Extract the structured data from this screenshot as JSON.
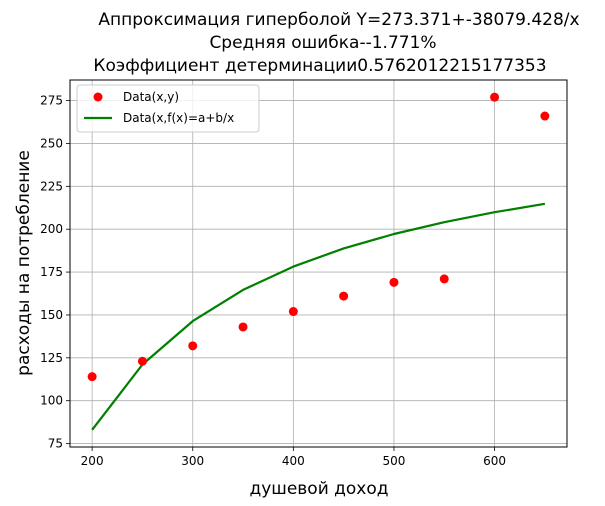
{
  "chart_data": {
    "type": "line",
    "title_lines": [
      "Аппроксимация гиперболой Y=273.371+-38079.428/x",
      "Средняя ошибка--1.771%",
      "Коэффициент детерминации0.5762012215177353"
    ],
    "xlabel": "душевой доход",
    "ylabel": "расходы на потребление",
    "xlim": [
      178,
      672
    ],
    "ylim": [
      73,
      287
    ],
    "xticks": [
      200,
      300,
      400,
      500,
      600
    ],
    "yticks": [
      75,
      100,
      125,
      150,
      175,
      200,
      225,
      250,
      275
    ],
    "grid": true,
    "legend_position": "upper-left",
    "series": [
      {
        "name": "Data(x,y)",
        "kind": "scatter",
        "color": "#ff0000",
        "x": [
          200,
          250,
          300,
          350,
          400,
          450,
          500,
          550,
          600,
          650
        ],
        "y": [
          114,
          123,
          132,
          143,
          152,
          161,
          169,
          171,
          277,
          266
        ]
      },
      {
        "name": "Data(x,f(x)=a+b/x",
        "kind": "line",
        "color": "#008000",
        "x": [
          200,
          250,
          300,
          350,
          400,
          450,
          500,
          550,
          600,
          650
        ],
        "y": [
          83.0,
          121.1,
          146.4,
          164.6,
          178.2,
          188.8,
          197.2,
          204.1,
          209.9,
          214.8
        ]
      }
    ]
  }
}
